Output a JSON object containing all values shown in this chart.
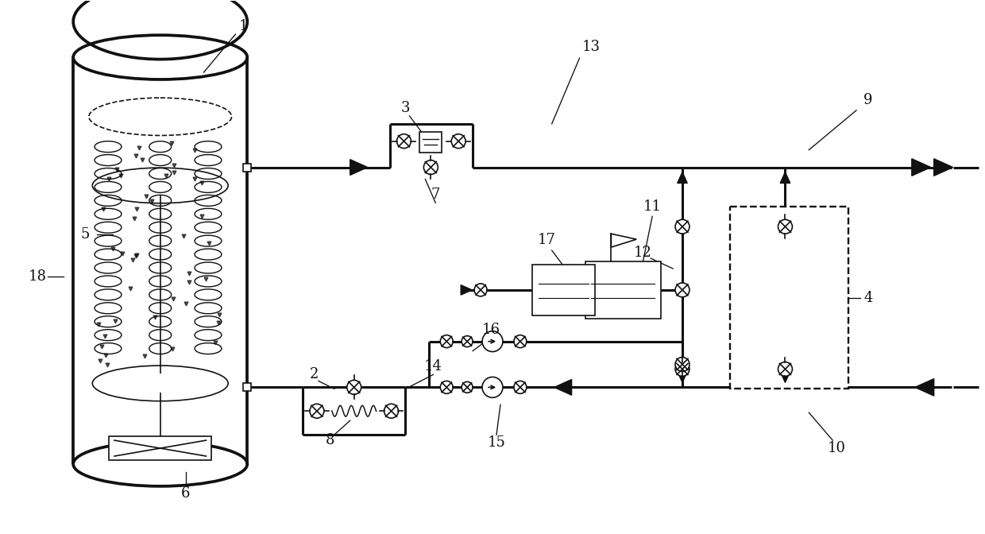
{
  "bg_color": "#ffffff",
  "lc": "#111111",
  "lw_main": 2.2,
  "lw_thin": 1.2,
  "fig_width": 12.4,
  "fig_height": 6.72
}
